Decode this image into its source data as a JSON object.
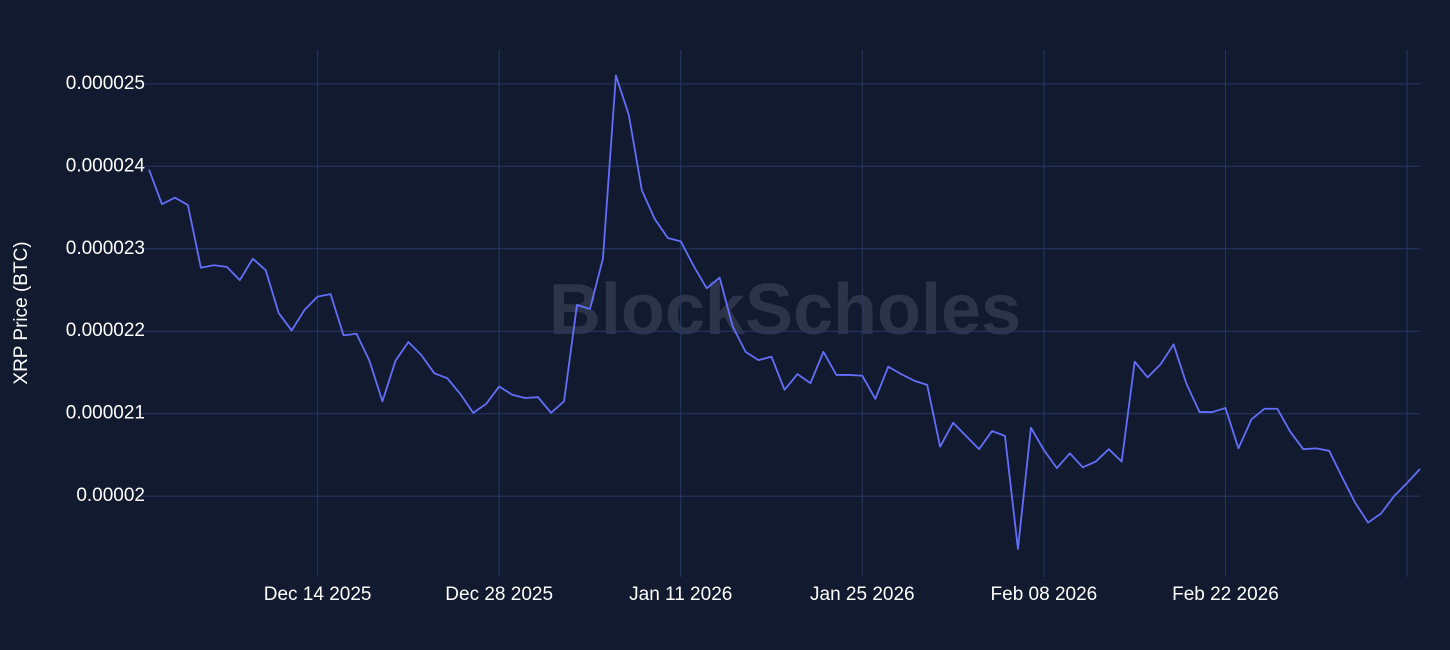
{
  "chart_data": {
    "type": "line",
    "watermark": "BlockScholes",
    "y_label": "XRP Price (BTC)",
    "x": [
      "2025-12-01",
      "2025-12-02",
      "2025-12-03",
      "2025-12-04",
      "2025-12-05",
      "2025-12-06",
      "2025-12-07",
      "2025-12-08",
      "2025-12-09",
      "2025-12-10",
      "2025-12-11",
      "2025-12-12",
      "2025-12-13",
      "2025-12-14",
      "2025-12-15",
      "2025-12-16",
      "2025-12-17",
      "2025-12-18",
      "2025-12-19",
      "2025-12-20",
      "2025-12-21",
      "2025-12-22",
      "2025-12-23",
      "2025-12-24",
      "2025-12-25",
      "2025-12-26",
      "2025-12-27",
      "2025-12-28",
      "2025-12-29",
      "2025-12-30",
      "2025-12-31",
      "2026-01-01",
      "2026-01-02",
      "2026-01-03",
      "2026-01-04",
      "2026-01-05",
      "2026-01-06",
      "2026-01-07",
      "2026-01-08",
      "2026-01-09",
      "2026-01-10",
      "2026-01-11",
      "2026-01-12",
      "2026-01-13",
      "2026-01-14",
      "2026-01-15",
      "2026-01-16",
      "2026-01-17",
      "2026-01-18",
      "2026-01-19",
      "2026-01-20",
      "2026-01-21",
      "2026-01-22",
      "2026-01-23",
      "2026-01-24",
      "2026-01-25",
      "2026-01-26",
      "2026-01-27",
      "2026-01-28",
      "2026-01-29",
      "2026-01-30",
      "2026-01-31",
      "2026-02-01",
      "2026-02-02",
      "2026-02-03",
      "2026-02-04",
      "2026-02-05",
      "2026-02-06",
      "2026-02-07",
      "2026-02-08",
      "2026-02-09",
      "2026-02-10",
      "2026-02-11",
      "2026-02-12",
      "2026-02-13",
      "2026-02-14",
      "2026-02-15",
      "2026-02-16",
      "2026-02-17",
      "2026-02-18",
      "2026-02-19",
      "2026-02-20",
      "2026-02-21",
      "2026-02-22",
      "2026-02-23",
      "2026-02-24",
      "2026-02-25",
      "2026-02-26",
      "2026-02-27",
      "2026-02-28",
      "2026-03-01",
      "2026-03-02",
      "2026-03-03",
      "2026-03-04",
      "2026-03-05",
      "2026-03-06",
      "2026-03-07",
      "2026-03-08",
      "2026-03-09"
    ],
    "series": [
      {
        "name": "XRP Price (BTC)",
        "color": "#636efa",
        "values": [
          2.396e-05,
          2.354e-05,
          2.362e-05,
          2.353e-05,
          2.277e-05,
          2.28e-05,
          2.278e-05,
          2.262e-05,
          2.288e-05,
          2.274e-05,
          2.222e-05,
          2.201e-05,
          2.226e-05,
          2.242e-05,
          2.245e-05,
          2.195e-05,
          2.197e-05,
          2.164e-05,
          2.115e-05,
          2.164e-05,
          2.187e-05,
          2.171e-05,
          2.149e-05,
          2.143e-05,
          2.124e-05,
          2.101e-05,
          2.112e-05,
          2.133e-05,
          2.123e-05,
          2.119e-05,
          2.12e-05,
          2.101e-05,
          2.115e-05,
          2.232e-05,
          2.227e-05,
          2.288e-05,
          2.51e-05,
          2.462e-05,
          2.371e-05,
          2.336e-05,
          2.313e-05,
          2.309e-05,
          2.279e-05,
          2.252e-05,
          2.265e-05,
          2.206e-05,
          2.175e-05,
          2.165e-05,
          2.169e-05,
          2.129e-05,
          2.148e-05,
          2.137e-05,
          2.175e-05,
          2.147e-05,
          2.147e-05,
          2.146e-05,
          2.118e-05,
          2.157e-05,
          2.148e-05,
          2.14e-05,
          2.135e-05,
          2.06e-05,
          2.089e-05,
          2.073e-05,
          2.057e-05,
          2.079e-05,
          2.073e-05,
          1.936e-05,
          2.083e-05,
          2.056e-05,
          2.034e-05,
          2.052e-05,
          2.035e-05,
          2.042e-05,
          2.057e-05,
          2.042e-05,
          2.163e-05,
          2.144e-05,
          2.16e-05,
          2.184e-05,
          2.136e-05,
          2.102e-05,
          2.102e-05,
          2.107e-05,
          2.058e-05,
          2.093e-05,
          2.106e-05,
          2.106e-05,
          2.078e-05,
          2.057e-05,
          2.058e-05,
          2.055e-05,
          2.023e-05,
          1.992e-05,
          1.968e-05,
          1.979e-05,
          2e-05,
          2.016e-05,
          2.033e-05
        ]
      }
    ],
    "xlim": [
      "2025-12-01",
      "2026-03-09"
    ],
    "xticks": [
      {
        "value": "2025-12-14",
        "label": "Dec 14 2025"
      },
      {
        "value": "2025-12-28",
        "label": "Dec 28 2025"
      },
      {
        "value": "2026-01-11",
        "label": "Jan 11 2026"
      },
      {
        "value": "2026-01-25",
        "label": "Jan 25 2026"
      },
      {
        "value": "2026-02-08",
        "label": "Feb 08 2026"
      },
      {
        "value": "2026-02-22",
        "label": "Feb 22 2026"
      },
      {
        "value": "2026-03-08",
        "label": null
      }
    ],
    "ylim": [
      1.902e-05,
      2.541e-05
    ],
    "yticks": [
      2e-05,
      2.1e-05,
      2.2e-05,
      2.3e-05,
      2.4e-05,
      2.5e-05
    ],
    "grid": true
  }
}
